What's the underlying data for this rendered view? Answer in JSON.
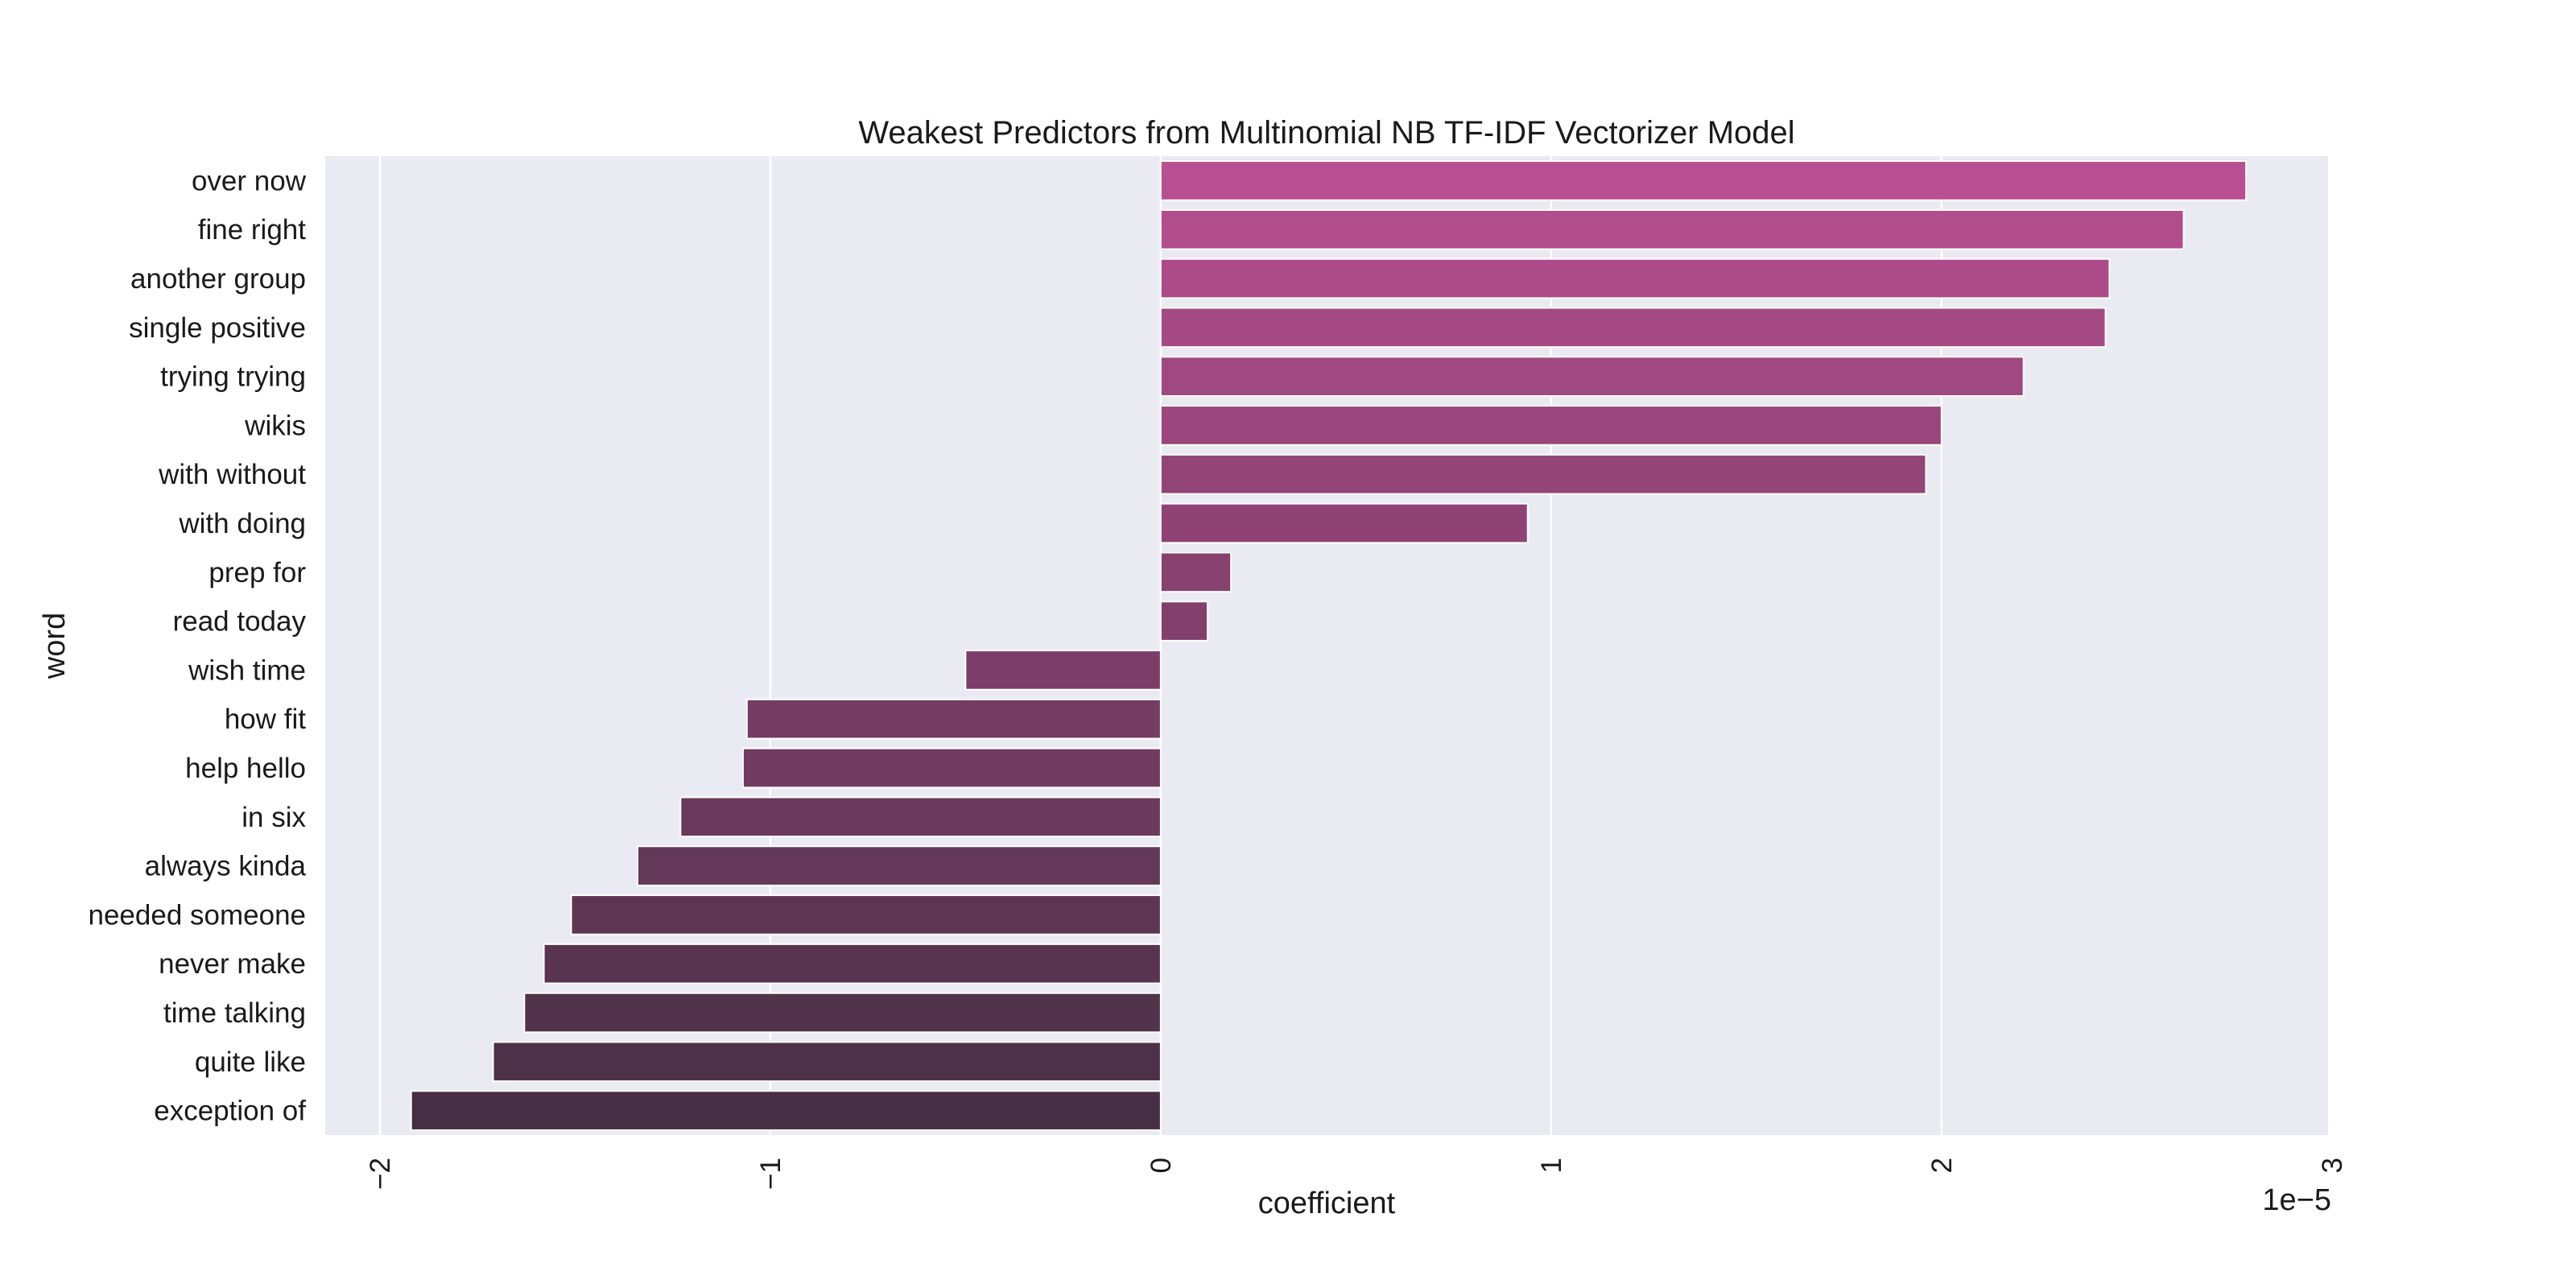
{
  "chart_data": {
    "type": "bar",
    "orientation": "horizontal",
    "title": "Weakest Predictors from Multinomial NB TF-IDF Vectorizer Model",
    "xlabel": "coefficient",
    "ylabel": "word",
    "x_scale_label": "1e−5",
    "xlim": [
      -2.14,
      2.99
    ],
    "grid": true,
    "x_ticks": [
      {
        "value": -2,
        "label": "−2"
      },
      {
        "value": -1,
        "label": "−1"
      },
      {
        "value": 0,
        "label": "0"
      },
      {
        "value": 1,
        "label": "1"
      },
      {
        "value": 2,
        "label": "2"
      },
      {
        "value": 3,
        "label": "3"
      }
    ],
    "categories": [
      "over now",
      "fine right",
      "another group",
      "single positive",
      "trying trying",
      "wikis",
      "with without",
      "with doing",
      "prep for",
      "read today",
      "wish time",
      "how fit",
      "help hello",
      "in six",
      "always kinda",
      "needed someone",
      "never make",
      "time talking",
      "quite like",
      "exception of"
    ],
    "values": [
      2.78,
      2.62,
      2.43,
      2.42,
      2.21,
      2.0,
      1.96,
      0.94,
      0.18,
      0.12,
      -0.5,
      -1.06,
      -1.07,
      -1.23,
      -1.34,
      -1.51,
      -1.58,
      -1.63,
      -1.71,
      -1.92
    ],
    "colors": [
      "#b84f90",
      "#b24d8c",
      "#ac4b88",
      "#a64a84",
      "#a04880",
      "#9a467c",
      "#944578",
      "#8e4374",
      "#884270",
      "#82406c",
      "#7c3e68",
      "#763c64",
      "#703b60",
      "#6a395c",
      "#643858",
      "#5e3654",
      "#583450",
      "#52334c",
      "#4c3148",
      "#462f44"
    ],
    "plot_background": "#eaeaf2"
  }
}
